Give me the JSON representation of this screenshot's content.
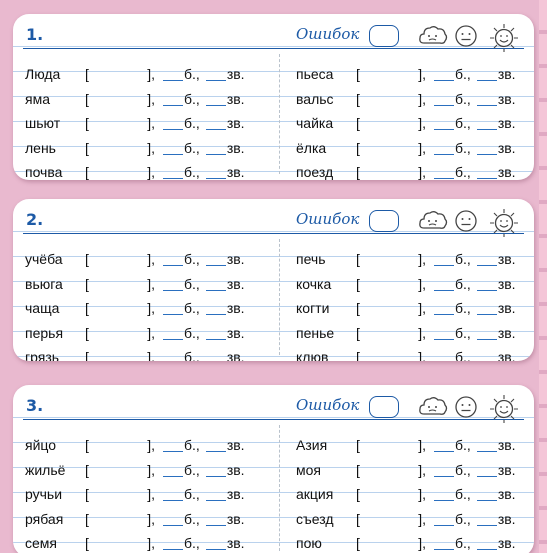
{
  "labels": {
    "errors": "Ошибок",
    "open_bracket": "[",
    "close_bracket": "],",
    "b": "б.,",
    "zv": "зв."
  },
  "colors": {
    "background": "#e9b9cf",
    "accent": "#1d5aa6"
  },
  "icons": [
    "cloud-icon",
    "neutral-face-icon",
    "sun-icon"
  ],
  "cards": [
    {
      "number": "1.",
      "left_words": [
        "Люда",
        "яма",
        "шьют",
        "лень",
        "почва"
      ],
      "right_words": [
        "пьеса",
        "вальс",
        "чайка",
        "ёлка",
        "поезд"
      ]
    },
    {
      "number": "2.",
      "left_words": [
        "учёба",
        "вьюга",
        "чаща",
        "перья",
        "грязь"
      ],
      "right_words": [
        "печь",
        "кочка",
        "когти",
        "пенье",
        "клюв"
      ]
    },
    {
      "number": "3.",
      "left_words": [
        "яйцо",
        "жильё",
        "ручьи",
        "рябая",
        "семя"
      ],
      "right_words": [
        "Азия",
        "моя",
        "акция",
        "съезд",
        "пою"
      ]
    }
  ]
}
